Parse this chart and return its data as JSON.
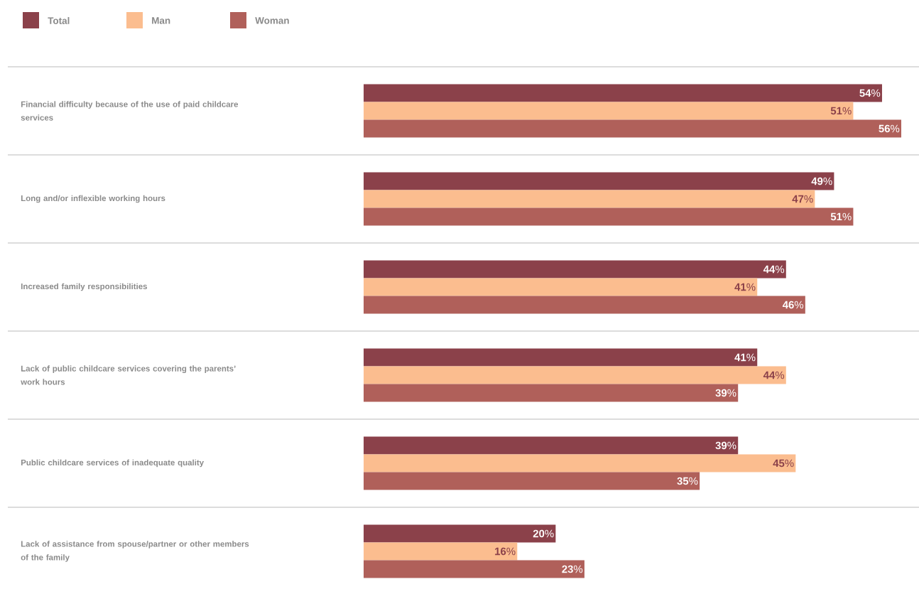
{
  "chart_data": {
    "type": "bar",
    "orientation": "horizontal",
    "legend": "top left",
    "categories": [
      "Financial difficulty because of the use of paid childcare services",
      "Long and/or inflexible working hours",
      "Increased family responsibilities",
      "Lack of public childcare services covering the parents’ work hours",
      "Public childcare services of inadequate quality",
      "Lack of assistance from spouse/partner or other members of the family"
    ],
    "series": [
      {
        "name": "Total",
        "color": "#8b414a",
        "values": [
          54,
          49,
          44,
          41,
          39,
          20
        ],
        "value_labels": [
          "**54**%",
          "**49**%",
          "**44**%",
          "**41**%",
          "**39**%",
          "**20**%"
        ]
      },
      {
        "name": "Man",
        "color": "#fbbd8f",
        "values": [
          51,
          47,
          41,
          44,
          45,
          16
        ],
        "value_labels": [
          "**51**%",
          "**47**%",
          "**41**%",
          "**44**%",
          "**45**%",
          "**16**%"
        ]
      },
      {
        "name": "Woman",
        "color": "#b0605a",
        "values": [
          56,
          51,
          46,
          39,
          35,
          23
        ],
        "value_labels": [
          "**56**%",
          "**51**%",
          "**46**%",
          "**39**%",
          "**35**%",
          "**23**%"
        ]
      }
    ]
  }
}
